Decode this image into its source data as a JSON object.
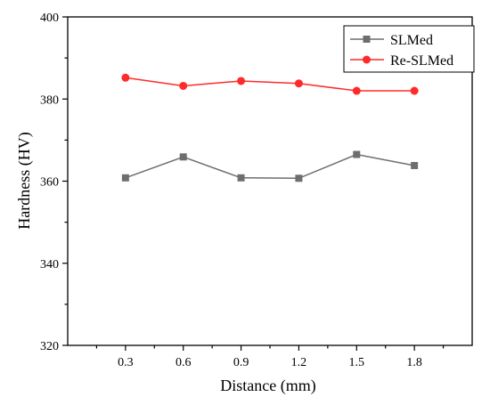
{
  "chart_data": {
    "type": "line",
    "title": "",
    "xlabel": "Distance (mm)",
    "ylabel": "Hardness (HV)",
    "x": [
      0.3,
      0.6,
      0.9,
      1.2,
      1.5,
      1.8
    ],
    "x_tick_labels": [
      "0.3",
      "0.6",
      "0.9",
      "1.2",
      "1.5",
      "1.8"
    ],
    "xlim": [
      0.0,
      2.1
    ],
    "ylim": [
      320,
      400
    ],
    "y_ticks": [
      320,
      340,
      360,
      380,
      400
    ],
    "y_tick_labels": [
      "320",
      "340",
      "360",
      "380",
      "400"
    ],
    "grid": false,
    "legend_position": "top-right",
    "series": [
      {
        "name": "SLMed",
        "values": [
          360.8,
          365.9,
          360.8,
          360.7,
          366.5,
          363.8
        ],
        "color": "#6e6e6e",
        "marker": "square"
      },
      {
        "name": "Re-SLMed",
        "values": [
          385.2,
          383.2,
          384.4,
          383.8,
          382.0,
          382.0
        ],
        "color": "#ff2a2a",
        "marker": "circle"
      }
    ]
  }
}
